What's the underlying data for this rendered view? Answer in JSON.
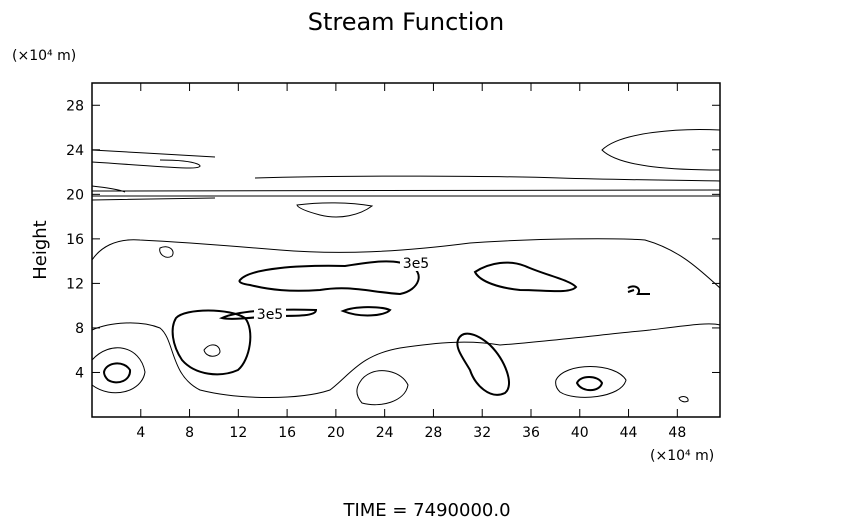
{
  "chart_data": {
    "type": "contour",
    "title": "Stream Function",
    "y_unit": "(×10⁴ m)",
    "x_unit": "(×10⁴ m)",
    "ylabel": "Height",
    "footer": "TIME = 7490000.0",
    "xlim": [
      0,
      51.5
    ],
    "ylim": [
      0,
      30
    ],
    "xticks": [
      4,
      8,
      12,
      16,
      20,
      24,
      28,
      32,
      36,
      40,
      44,
      48
    ],
    "yticks": [
      4,
      8,
      12,
      16,
      20,
      24,
      28
    ],
    "contour_labels": [
      {
        "value": 300000,
        "label": "3e5"
      },
      {
        "value": 300000,
        "label": "3e5"
      }
    ]
  }
}
